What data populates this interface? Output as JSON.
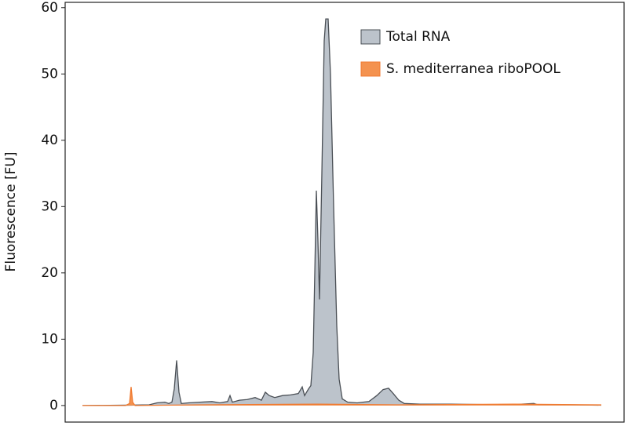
{
  "chart_data": {
    "type": "area",
    "ylabel": "Fluorescence [FU]",
    "xlim": [
      -22,
      690
    ],
    "ylim": [
      -2.5,
      60.8
    ],
    "yticks": [
      0,
      10,
      20,
      30,
      40,
      50,
      60
    ],
    "legend": "upper right",
    "series": [
      {
        "name": "Total RNA",
        "color": "#bcc3cb",
        "edge": "#4a4f55",
        "x": [
          0,
          60,
          85,
          95,
          105,
          110,
          114,
          117,
          120,
          123,
          126,
          135,
          150,
          165,
          175,
          185,
          188,
          191,
          200,
          210,
          220,
          228,
          233,
          238,
          245,
          255,
          265,
          275,
          280,
          283,
          288,
          291,
          294,
          296,
          298,
          300,
          302,
          305,
          308,
          310,
          313,
          316,
          320,
          324,
          327,
          331,
          338,
          350,
          365,
          375,
          383,
          390,
          396,
          403,
          410,
          430,
          470,
          510,
          550,
          575,
          580,
          620,
          661
        ],
        "values": [
          0,
          0.05,
          0.1,
          0.4,
          0.5,
          0.3,
          0.5,
          2.5,
          6.8,
          2,
          0.3,
          0.4,
          0.5,
          0.6,
          0.4,
          0.6,
          1.5,
          0.5,
          0.8,
          0.9,
          1.2,
          0.8,
          2,
          1.5,
          1.2,
          1.5,
          1.6,
          1.8,
          2.8,
          1.5,
          2.5,
          3,
          8,
          20,
          32.4,
          25,
          16,
          35,
          55,
          58.3,
          58.3,
          50,
          30,
          12,
          4,
          1,
          0.5,
          0.4,
          0.6,
          1.5,
          2.4,
          2.6,
          1.8,
          0.8,
          0.3,
          0.2,
          0.2,
          0.15,
          0.15,
          0.3,
          0.1,
          0.1,
          0.05
        ]
      },
      {
        "name": "S. mediterranea riboPOOL",
        "color": "#f4924f",
        "edge": "#f07a30",
        "x": [
          0,
          55,
          60,
          62,
          64,
          67,
          150,
          300,
          400,
          550,
          661
        ],
        "values": [
          0,
          0,
          0.3,
          2.8,
          0.5,
          0,
          0.1,
          0.2,
          0.1,
          0.2,
          0.1
        ]
      }
    ]
  }
}
